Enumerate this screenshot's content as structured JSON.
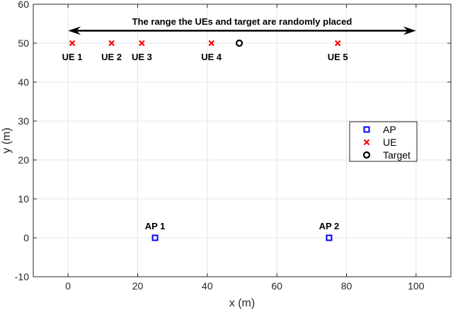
{
  "chart_data": {
    "type": "scatter",
    "xlabel": "x (m)",
    "ylabel": "y (m)",
    "xlim": [
      -10,
      110
    ],
    "ylim": [
      -10,
      60
    ],
    "xticks": [
      0,
      20,
      40,
      60,
      80,
      100
    ],
    "yticks": [
      -10,
      0,
      10,
      20,
      30,
      40,
      50,
      60
    ],
    "grid": true,
    "legend_position": "right",
    "series": [
      {
        "name": "AP",
        "marker": "square",
        "color": "#0000ff",
        "points": [
          {
            "x": 25,
            "y": 0,
            "label": "AP 1"
          },
          {
            "x": 75,
            "y": 0,
            "label": "AP 2"
          }
        ]
      },
      {
        "name": "UE",
        "marker": "x",
        "color": "#ff0000",
        "points": [
          {
            "x": 1.2,
            "y": 50,
            "label": "UE 1"
          },
          {
            "x": 12.5,
            "y": 50,
            "label": "UE 2"
          },
          {
            "x": 21.2,
            "y": 50,
            "label": "UE 3"
          },
          {
            "x": 41.2,
            "y": 50,
            "label": "UE 4"
          },
          {
            "x": 77.5,
            "y": 50,
            "label": "UE 5"
          }
        ]
      },
      {
        "name": "Target",
        "marker": "circle",
        "color": "#000000",
        "points": [
          {
            "x": 49.2,
            "y": 50,
            "label": ""
          }
        ]
      }
    ],
    "annotation": {
      "text": "The range the UEs and target are randomly placed",
      "arrow_from_x": 0,
      "arrow_to_x": 100,
      "arrow_y": 53.2,
      "text_y": 55.5
    }
  }
}
